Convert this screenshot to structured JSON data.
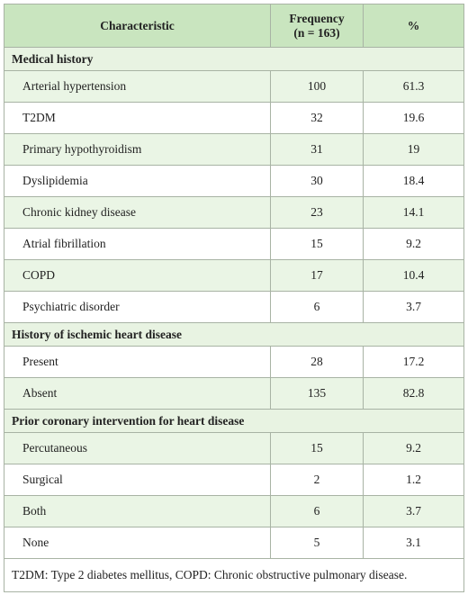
{
  "table": {
    "header": [
      "Characteristic",
      "Frequency\n(n = 163)",
      "%"
    ],
    "sections": [
      {
        "title": "Medical history",
        "rows": [
          [
            "Arterial hypertension",
            "100",
            "61.3"
          ],
          [
            "T2DM",
            "32",
            "19.6"
          ],
          [
            "Primary hypothyroidism",
            "31",
            "19"
          ],
          [
            "Dyslipidemia",
            "30",
            "18.4"
          ],
          [
            "Chronic kidney disease",
            "23",
            "14.1"
          ],
          [
            "Atrial fibrillation",
            "15",
            "9.2"
          ],
          [
            "COPD",
            "17",
            "10.4"
          ],
          [
            "Psychiatric disorder",
            "6",
            "3.7"
          ]
        ]
      },
      {
        "title": "History of ischemic heart disease",
        "rows": [
          [
            "Present",
            "28",
            "17.2"
          ],
          [
            "Absent",
            "135",
            "82.8"
          ]
        ]
      },
      {
        "title": "Prior coronary intervention for heart disease",
        "rows": [
          [
            "Percutaneous",
            "15",
            "9.2"
          ],
          [
            "Surgical",
            "2",
            "1.2"
          ],
          [
            "Both",
            "6",
            "3.7"
          ],
          [
            "None",
            "5",
            "3.1"
          ]
        ]
      }
    ],
    "footnote": "T2DM: Type 2 diabetes mellitus, COPD: Chronic obstructive pulmonary disease."
  }
}
